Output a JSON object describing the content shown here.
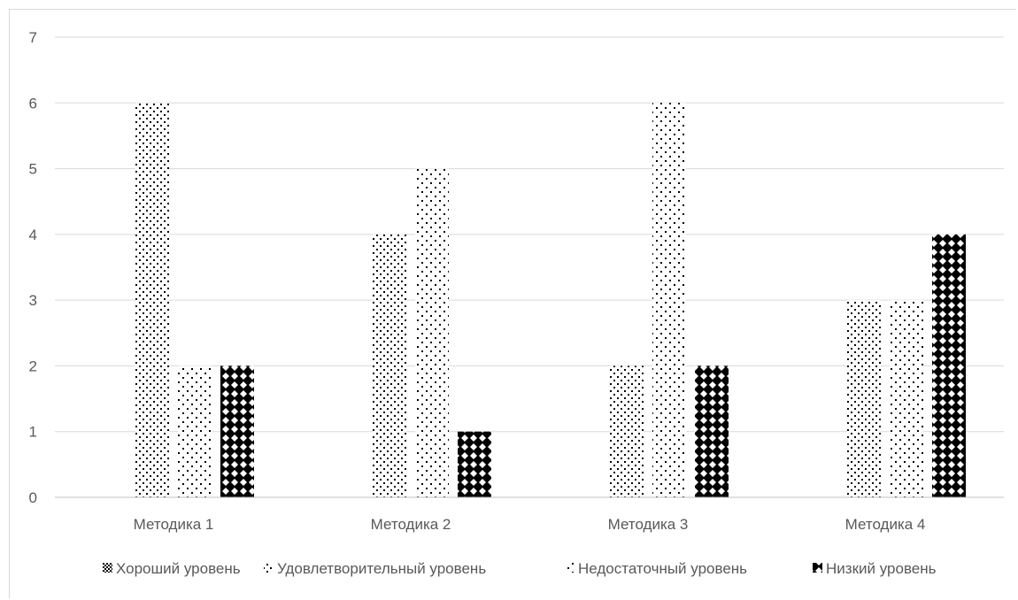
{
  "chart_data": {
    "type": "bar",
    "title": "",
    "xlabel": "",
    "ylabel": "",
    "ylim": [
      0,
      7
    ],
    "yticks": [
      0,
      1,
      2,
      3,
      4,
      5,
      6,
      7
    ],
    "grid": true,
    "legend_position": "bottom",
    "categories": [
      "Методика 1",
      "Методика 2",
      "Методика 3",
      "Методика 4"
    ],
    "series": [
      {
        "name": "Хороший уровень",
        "values": [
          0,
          0,
          0,
          0
        ],
        "pattern": "check"
      },
      {
        "name": "Удовлетворительный уровень",
        "values": [
          6,
          4,
          2,
          3
        ],
        "pattern": "dots-dense"
      },
      {
        "name": "Недостаточный уровень",
        "values": [
          2,
          5,
          6,
          3
        ],
        "pattern": "dots-sparse"
      },
      {
        "name": "Низкий уровень",
        "values": [
          2,
          1,
          2,
          4
        ],
        "pattern": "diamond"
      }
    ],
    "colors": {
      "grid": "#d9d9d9",
      "axis": "#bfbfbf",
      "text": "#595959",
      "ink": "#000000"
    }
  }
}
